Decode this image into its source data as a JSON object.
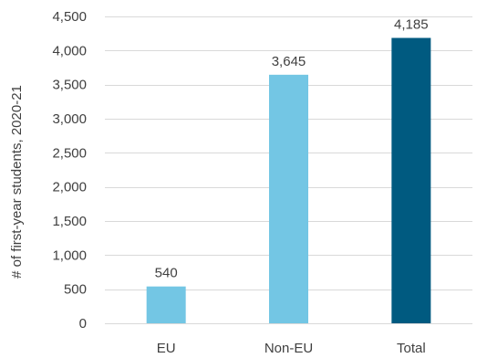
{
  "chart_data": {
    "type": "bar",
    "title": "",
    "xlabel": "",
    "ylabel": "# of first-year students, 2020-21",
    "categories": [
      "EU",
      "Non-EU",
      "Total"
    ],
    "values": [
      540,
      3645,
      4185
    ],
    "data_labels": [
      "540",
      "3,645",
      "4,185"
    ],
    "bar_colors": [
      "#73c6e4",
      "#73c6e4",
      "#005a80"
    ],
    "ylim": [
      0,
      4500
    ],
    "yticks": [
      0,
      500,
      1000,
      1500,
      2000,
      2500,
      3000,
      3500,
      4000,
      4500
    ],
    "ytick_labels": [
      "0",
      "500",
      "1,000",
      "1,500",
      "2,000",
      "2,500",
      "3,000",
      "3,500",
      "4,000",
      "4,500"
    ],
    "grid": true,
    "legend": "none"
  }
}
